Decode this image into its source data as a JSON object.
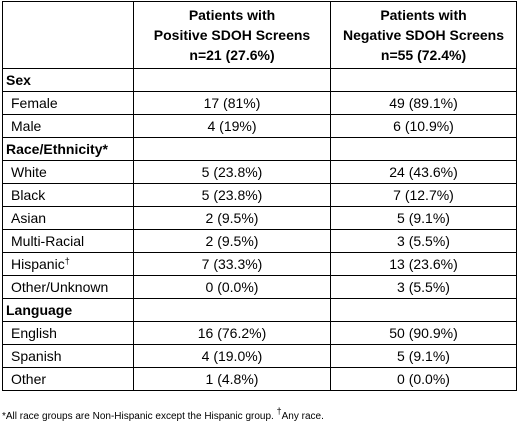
{
  "header": {
    "col_positive": [
      "Patients with",
      "Positive SDOH Screens",
      "n=21 (27.6%)"
    ],
    "col_negative": [
      "Patients with",
      "Negative SDOH Screens",
      "n=55 (72.4%)"
    ]
  },
  "sections": [
    {
      "title": "Sex",
      "rows": [
        {
          "label": "Female",
          "sup": "",
          "positive": "17 (81%)",
          "negative": "49 (89.1%)"
        },
        {
          "label": "Male",
          "sup": "",
          "positive": "4 (19%)",
          "negative": "6 (10.9%)"
        }
      ]
    },
    {
      "title": "Race/Ethnicity*",
      "rows": [
        {
          "label": "White",
          "sup": "",
          "positive": "5 (23.8%)",
          "negative": "24 (43.6%)"
        },
        {
          "label": "Black",
          "sup": "",
          "positive": "5 (23.8%)",
          "negative": "7 (12.7%)"
        },
        {
          "label": "Asian",
          "sup": "",
          "positive": "2 (9.5%)",
          "negative": "5 (9.1%)"
        },
        {
          "label": "Multi-Racial",
          "sup": "",
          "positive": "2 (9.5%)",
          "negative": "3 (5.5%)"
        },
        {
          "label": "Hispanic",
          "sup": "†",
          "positive": "7 (33.3%)",
          "negative": "13 (23.6%)"
        },
        {
          "label": "Other/Unknown",
          "sup": "",
          "positive": "0 (0.0%)",
          "negative": "3 (5.5%)"
        }
      ]
    },
    {
      "title": "Language",
      "rows": [
        {
          "label": "English",
          "sup": "",
          "positive": "16 (76.2%)",
          "negative": "50 (90.9%)"
        },
        {
          "label": "Spanish",
          "sup": "",
          "positive": "4 (19.0%)",
          "negative": "5 (9.1%)"
        },
        {
          "label": "Other",
          "sup": "",
          "positive": "1 (4.8%)",
          "negative": "0 (0.0%)"
        }
      ]
    }
  ],
  "footnote": {
    "main": "*All race groups are Non-Hispanic except the Hispanic group. ",
    "sup": "†",
    "tail": "Any race."
  }
}
